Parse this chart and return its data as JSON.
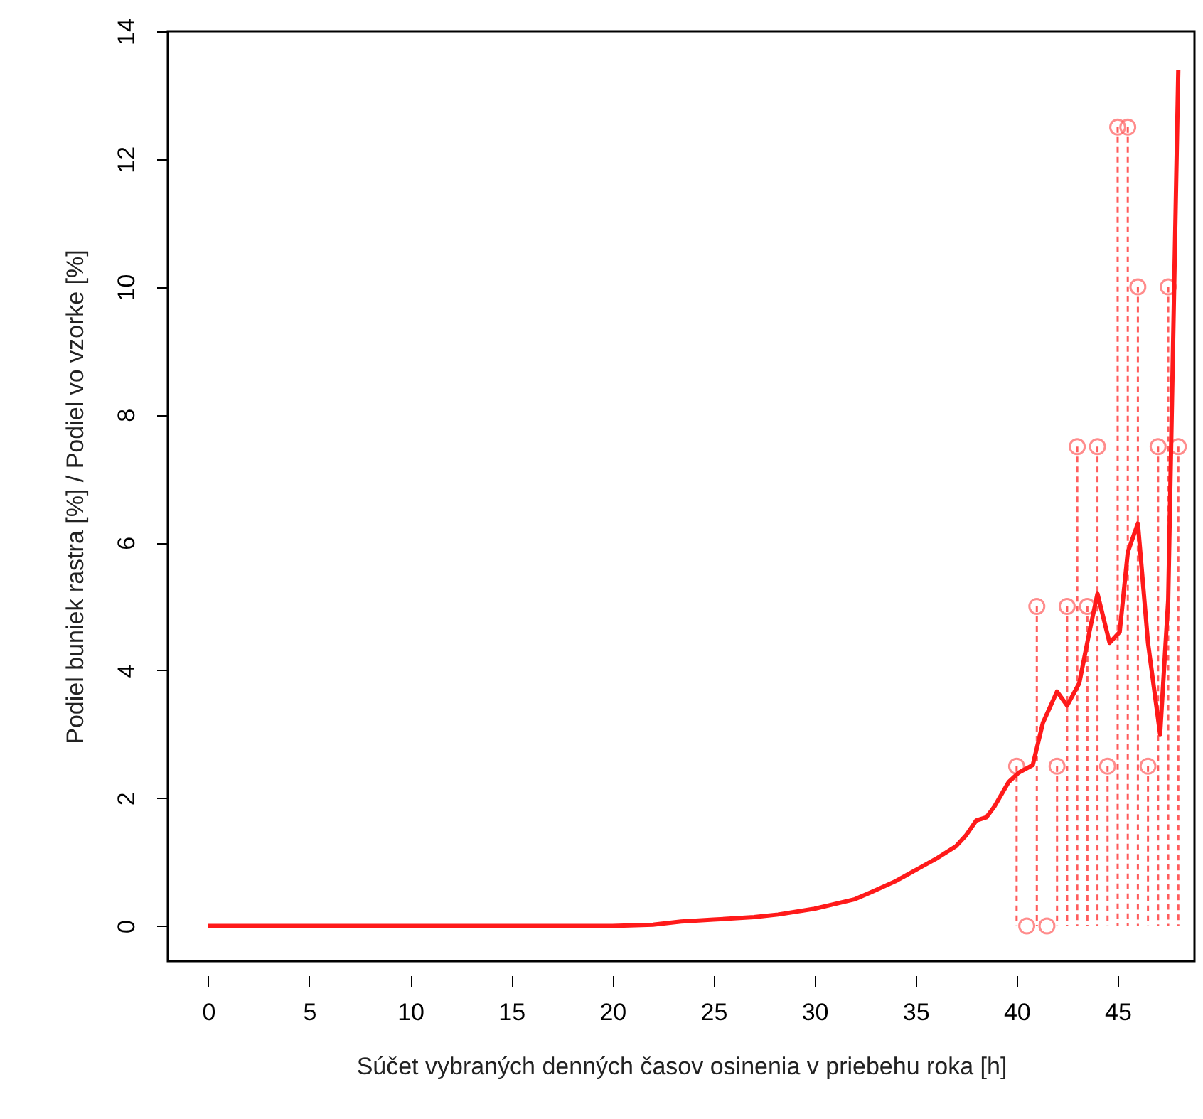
{
  "chart_data": {
    "type": "line",
    "xlabel": "Súčet vybraných denných časov osinenia v priebehu roka [h]",
    "ylabel": "Podiel buniek rastra [%] / Podiel vo vzorke [%]",
    "xlim": [
      -2,
      48.8
    ],
    "xticks": [
      0,
      5,
      10,
      15,
      20,
      25,
      30,
      35,
      40,
      45
    ],
    "ylim": [
      -0.55,
      14
    ],
    "yticks": [
      0,
      2,
      4,
      6,
      8,
      10,
      12,
      14
    ],
    "grid": false,
    "series": [
      {
        "color": "#ff1a1a",
        "line_style": "solid",
        "marker": "none",
        "x": [
          0,
          5,
          10,
          15,
          20,
          22,
          23.4,
          25,
          27,
          28.2,
          30,
          32,
          32.8,
          34,
          35.2,
          36,
          37,
          37.5,
          38,
          38.5,
          38.9,
          39.6,
          40.1,
          40.8,
          41.3,
          42,
          42.5,
          43.1,
          43.6,
          44,
          44.6,
          45.1,
          45.5,
          46,
          46.5,
          47.1,
          47.5,
          48
        ],
        "values": [
          0,
          0,
          0,
          0,
          0,
          0.02,
          0.07,
          0.1,
          0.14,
          0.18,
          0.27,
          0.42,
          0.53,
          0.7,
          0.91,
          1.05,
          1.25,
          1.42,
          1.65,
          1.7,
          1.87,
          2.25,
          2.4,
          2.52,
          3.18,
          3.67,
          3.45,
          3.8,
          4.6,
          5.2,
          4.43,
          4.6,
          5.85,
          6.3,
          4.43,
          3.0,
          5.1,
          13.4
        ]
      },
      {
        "type": "lollipop",
        "color": "#ff5c5c",
        "line_style": "dashed",
        "marker": "circle",
        "x": [
          40,
          40.5,
          41,
          41.5,
          42,
          42.5,
          43,
          43.5,
          44,
          44.5,
          45,
          45.5,
          46,
          46.5,
          47,
          47.5,
          48
        ],
        "values": [
          2.5,
          0,
          5,
          0,
          2.5,
          5,
          7.5,
          5,
          7.5,
          2.5,
          12.5,
          12.5,
          10,
          2.5,
          7.5,
          10,
          7.5
        ]
      }
    ]
  }
}
